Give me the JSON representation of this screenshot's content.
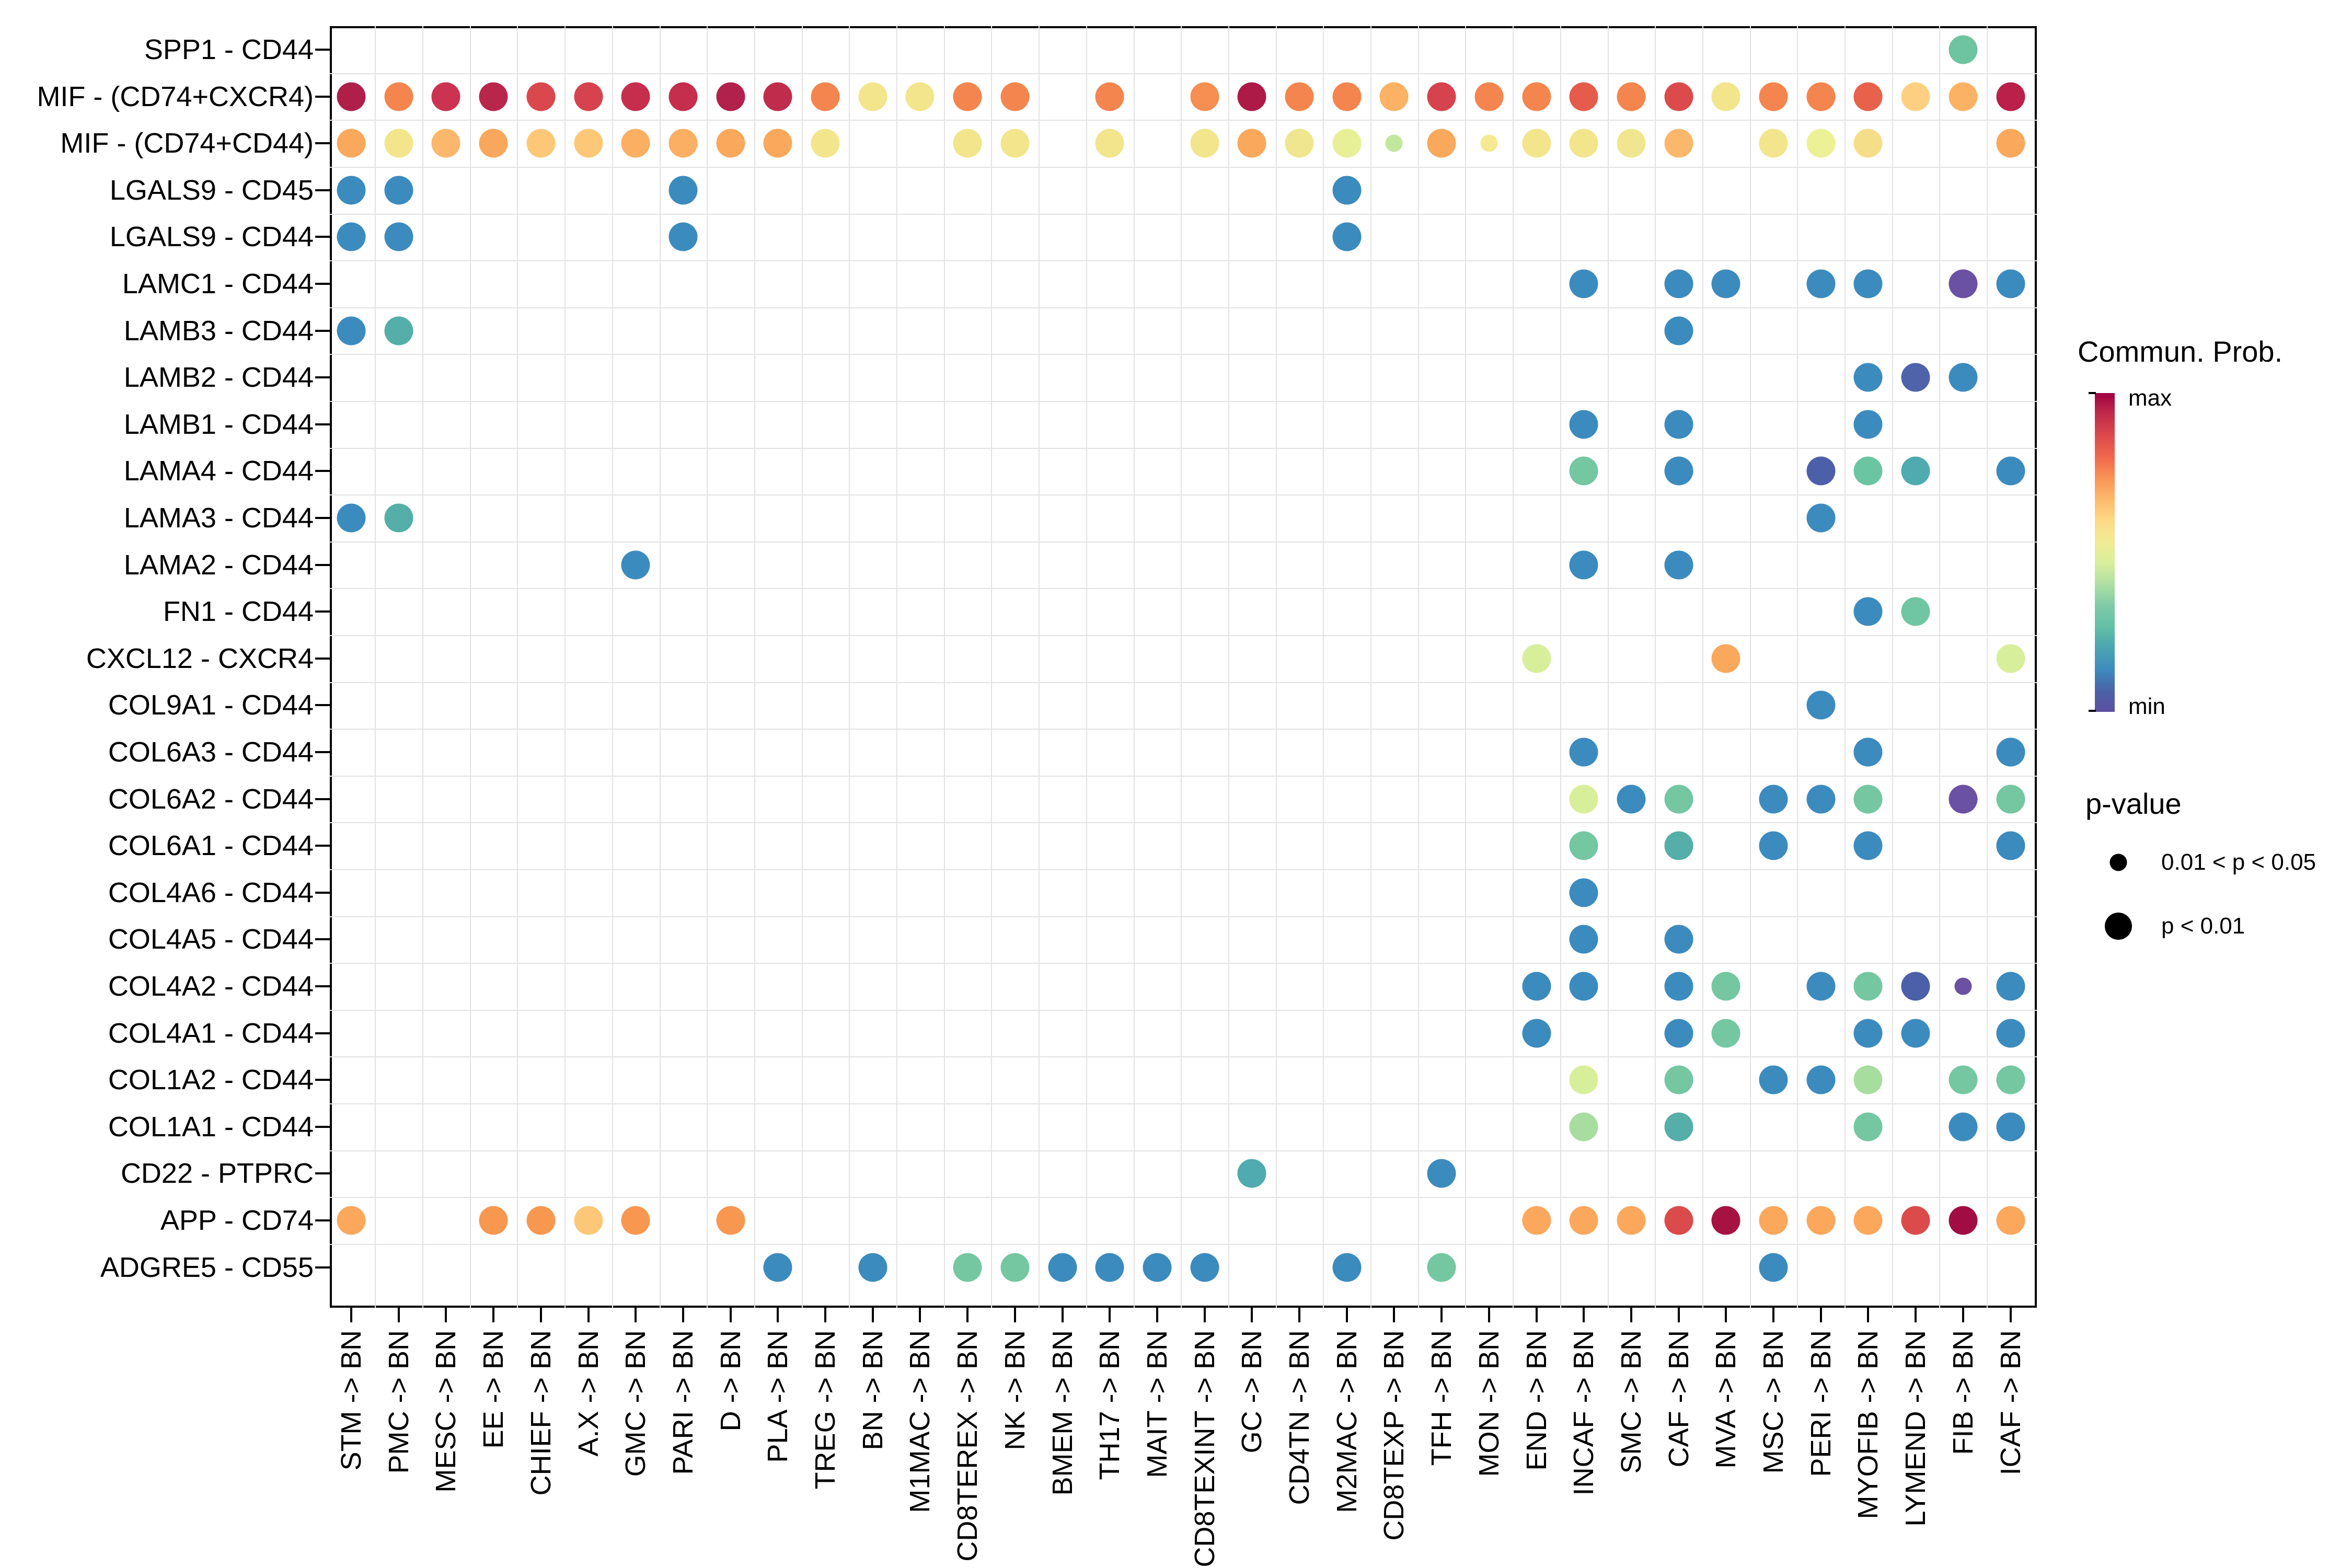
{
  "legend": {
    "color_title": "Commun. Prob.",
    "color_max_label": "max",
    "color_min_label": "min",
    "colorbar_gradient": [
      "#9E0142",
      "#C22B4B",
      "#DC494C",
      "#F0674B",
      "#F99355",
      "#FDB96C",
      "#FDD985",
      "#F2EB94",
      "#D8EF9B",
      "#AEDEA3",
      "#7FCBA6",
      "#62BFA6",
      "#4BA4B2",
      "#3C8BBE",
      "#4A63A9",
      "#5E4FA2"
    ],
    "pvalue_title": "p-value",
    "pvalue_items": [
      {
        "label": "0.01 < p < 0.05",
        "size": 33
      },
      {
        "label": "p < 0.01",
        "size": 52
      }
    ]
  },
  "chart_data": {
    "type": "scatter",
    "title": "",
    "xlabel": "",
    "ylabel": "",
    "grid": true,
    "legend_position": "right",
    "color_scale": {
      "palette": "Spectral reversed",
      "max_color": "#9E0142",
      "min_color": "#5E4FA2",
      "max_label": "max",
      "min_label": "min"
    },
    "size_scale": {
      "large": "p < 0.01",
      "small": "0.01 < p < 0.05"
    },
    "x_categories": [
      "STM -> BN",
      "PMC -> BN",
      "MESC -> BN",
      "EE -> BN",
      "CHIEF -> BN",
      "A.X -> BN",
      "GMC -> BN",
      "PARI -> BN",
      "D -> BN",
      "PLA -> BN",
      "TREG -> BN",
      "BN -> BN",
      "M1MAC -> BN",
      "CD8TEREX -> BN",
      "NK -> BN",
      "BMEM -> BN",
      "TH17 -> BN",
      "MAIT -> BN",
      "CD8TEXINT -> BN",
      "GC -> BN",
      "CD4TN -> BN",
      "M2MAC -> BN",
      "CD8TEXP -> BN",
      "TFH -> BN",
      "MON -> BN",
      "END -> BN",
      "INCAF -> BN",
      "SMC -> BN",
      "CAF -> BN",
      "MVA -> BN",
      "MSC -> BN",
      "PERI -> BN",
      "MYOFIB -> BN",
      "LYMEND -> BN",
      "FIB -> BN",
      "ICAF -> BN"
    ],
    "y_categories": [
      "SPP1 - CD44",
      "MIF - (CD74+CXCR4)",
      "MIF - (CD74+CD44)",
      "LGALS9 - CD45",
      "LGALS9 - CD44",
      "LAMC1 - CD44",
      "LAMB3 - CD44",
      "LAMB2 - CD44",
      "LAMB1 - CD44",
      "LAMA4 - CD44",
      "LAMA3 - CD44",
      "LAMA2 - CD44",
      "FN1 - CD44",
      "CXCL12 - CXCR4",
      "COL9A1 - CD44",
      "COL6A3 - CD44",
      "COL6A2 - CD44",
      "COL6A1 - CD44",
      "COL4A6 - CD44",
      "COL4A5 - CD44",
      "COL4A2 - CD44",
      "COL4A1 - CD44",
      "COL1A2 - CD44",
      "COL1A1 - CD44",
      "CD22 - PTPRC",
      "APP - CD74",
      "ADGRE5 - CD55"
    ],
    "points": [
      [
        0,
        34,
        "#6EC4A0",
        "l"
      ],
      [
        1,
        0,
        "#B01F4A",
        "l"
      ],
      [
        1,
        1,
        "#F5854E",
        "l"
      ],
      [
        1,
        2,
        "#CC3350",
        "l"
      ],
      [
        1,
        3,
        "#B8264C",
        "l"
      ],
      [
        1,
        4,
        "#DA474D",
        "l"
      ],
      [
        1,
        5,
        "#D6434E",
        "l"
      ],
      [
        1,
        6,
        "#C52E4D",
        "l"
      ],
      [
        1,
        7,
        "#C52E4D",
        "l"
      ],
      [
        1,
        8,
        "#B2214B",
        "l"
      ],
      [
        1,
        9,
        "#C02C4B",
        "l"
      ],
      [
        1,
        10,
        "#F5854E",
        "l"
      ],
      [
        1,
        11,
        "#F2E58C",
        "l"
      ],
      [
        1,
        12,
        "#F2E58C",
        "l"
      ],
      [
        1,
        13,
        "#F5854E",
        "l"
      ],
      [
        1,
        14,
        "#F5854E",
        "l"
      ],
      [
        1,
        16,
        "#F5854E",
        "l"
      ],
      [
        1,
        18,
        "#F78E52",
        "l"
      ],
      [
        1,
        19,
        "#AD1A48",
        "l"
      ],
      [
        1,
        20,
        "#F5854E",
        "l"
      ],
      [
        1,
        21,
        "#F5854E",
        "l"
      ],
      [
        1,
        22,
        "#FBB264",
        "l"
      ],
      [
        1,
        23,
        "#D6434E",
        "l"
      ],
      [
        1,
        24,
        "#F5854E",
        "l"
      ],
      [
        1,
        25,
        "#F5854E",
        "l"
      ],
      [
        1,
        26,
        "#E55B4C",
        "l"
      ],
      [
        1,
        27,
        "#F5854E",
        "l"
      ],
      [
        1,
        28,
        "#DC4B4C",
        "l"
      ],
      [
        1,
        29,
        "#F2E58C",
        "l"
      ],
      [
        1,
        30,
        "#F5854E",
        "l"
      ],
      [
        1,
        31,
        "#F5854E",
        "l"
      ],
      [
        1,
        32,
        "#E8614B",
        "l"
      ],
      [
        1,
        33,
        "#FDD081",
        "l"
      ],
      [
        1,
        34,
        "#FBB264",
        "l"
      ],
      [
        1,
        35,
        "#BA2049",
        "l"
      ],
      [
        2,
        0,
        "#F9A85C",
        "l"
      ],
      [
        2,
        1,
        "#F2E58C",
        "l"
      ],
      [
        2,
        2,
        "#FBB76B",
        "l"
      ],
      [
        2,
        3,
        "#F9A75C",
        "l"
      ],
      [
        2,
        4,
        "#FCC878",
        "l"
      ],
      [
        2,
        5,
        "#FCC878",
        "l"
      ],
      [
        2,
        6,
        "#FAAF63",
        "l"
      ],
      [
        2,
        7,
        "#FAAF63",
        "l"
      ],
      [
        2,
        8,
        "#F9A85C",
        "l"
      ],
      [
        2,
        9,
        "#F9A85C",
        "l"
      ],
      [
        2,
        10,
        "#F2E58C",
        "l"
      ],
      [
        2,
        13,
        "#F2E58C",
        "l"
      ],
      [
        2,
        14,
        "#F2E58C",
        "l"
      ],
      [
        2,
        16,
        "#F2E58C",
        "l"
      ],
      [
        2,
        18,
        "#F2E58C",
        "l"
      ],
      [
        2,
        19,
        "#F9A85C",
        "l"
      ],
      [
        2,
        20,
        "#F0E68F",
        "l"
      ],
      [
        2,
        21,
        "#E7F096",
        "l"
      ],
      [
        2,
        22,
        "#C2E89E",
        "s"
      ],
      [
        2,
        23,
        "#F9A85C",
        "l"
      ],
      [
        2,
        24,
        "#F5EA90",
        "s"
      ],
      [
        2,
        25,
        "#F2E58C",
        "l"
      ],
      [
        2,
        26,
        "#F2E58C",
        "l"
      ],
      [
        2,
        27,
        "#F0E68F",
        "l"
      ],
      [
        2,
        28,
        "#FBB76B",
        "l"
      ],
      [
        2,
        30,
        "#F2E58C",
        "l"
      ],
      [
        2,
        31,
        "#EDF195",
        "l"
      ],
      [
        2,
        32,
        "#F6DE89",
        "l"
      ],
      [
        2,
        35,
        "#F9A85C",
        "l"
      ],
      [
        3,
        0,
        "#3C8BBE",
        "l"
      ],
      [
        3,
        1,
        "#3C8BBE",
        "l"
      ],
      [
        3,
        7,
        "#3C8BBE",
        "l"
      ],
      [
        3,
        21,
        "#3C8BBE",
        "l"
      ],
      [
        4,
        0,
        "#3C8BBE",
        "l"
      ],
      [
        4,
        1,
        "#3C8BBE",
        "l"
      ],
      [
        4,
        7,
        "#3C8BBE",
        "l"
      ],
      [
        4,
        21,
        "#3C8BBE",
        "l"
      ],
      [
        5,
        26,
        "#3C8BBE",
        "l"
      ],
      [
        5,
        28,
        "#3C8BBE",
        "l"
      ],
      [
        5,
        29,
        "#3C8BBE",
        "l"
      ],
      [
        5,
        31,
        "#3C8BBE",
        "l"
      ],
      [
        5,
        32,
        "#3C8BBE",
        "l"
      ],
      [
        5,
        34,
        "#6A51A3",
        "l"
      ],
      [
        5,
        35,
        "#3C8BBE",
        "l"
      ],
      [
        6,
        0,
        "#3C8BBE",
        "l"
      ],
      [
        6,
        1,
        "#55AEA8",
        "l"
      ],
      [
        6,
        28,
        "#3C8BBE",
        "l"
      ],
      [
        7,
        32,
        "#3C8BBE",
        "l"
      ],
      [
        7,
        33,
        "#4F63AB",
        "l"
      ],
      [
        7,
        34,
        "#3C8BBE",
        "l"
      ],
      [
        8,
        26,
        "#3C8BBE",
        "l"
      ],
      [
        8,
        28,
        "#3C8BBE",
        "l"
      ],
      [
        8,
        32,
        "#3C8BBE",
        "l"
      ],
      [
        9,
        26,
        "#74C7A1",
        "l"
      ],
      [
        9,
        28,
        "#3C8BBE",
        "l"
      ],
      [
        9,
        31,
        "#4C5FA9",
        "l"
      ],
      [
        9,
        32,
        "#6BC5A3",
        "l"
      ],
      [
        9,
        33,
        "#4FABAF",
        "l"
      ],
      [
        9,
        35,
        "#3C8BBE",
        "l"
      ],
      [
        10,
        0,
        "#3C8BBE",
        "l"
      ],
      [
        10,
        1,
        "#55AEA8",
        "l"
      ],
      [
        10,
        31,
        "#3C8BBE",
        "l"
      ],
      [
        11,
        6,
        "#3C8BBE",
        "l"
      ],
      [
        11,
        26,
        "#3C8BBE",
        "l"
      ],
      [
        11,
        28,
        "#3C8BBE",
        "l"
      ],
      [
        12,
        32,
        "#3C8BBE",
        "l"
      ],
      [
        12,
        33,
        "#70C6A2",
        "l"
      ],
      [
        13,
        25,
        "#D7EF9B",
        "l"
      ],
      [
        13,
        29,
        "#F9A85C",
        "l"
      ],
      [
        13,
        35,
        "#D7EF9B",
        "l"
      ],
      [
        14,
        31,
        "#3C8BBE",
        "l"
      ],
      [
        15,
        26,
        "#3C8BBE",
        "l"
      ],
      [
        15,
        32,
        "#3C8BBE",
        "l"
      ],
      [
        15,
        35,
        "#3C8BBE",
        "l"
      ],
      [
        16,
        26,
        "#D7EF9B",
        "l"
      ],
      [
        16,
        27,
        "#3C8BBE",
        "l"
      ],
      [
        16,
        28,
        "#74C7A1",
        "l"
      ],
      [
        16,
        30,
        "#3C8BBE",
        "l"
      ],
      [
        16,
        31,
        "#3C8BBE",
        "l"
      ],
      [
        16,
        32,
        "#74C7A1",
        "l"
      ],
      [
        16,
        34,
        "#6A51A3",
        "l"
      ],
      [
        16,
        35,
        "#74C7A1",
        "l"
      ],
      [
        17,
        26,
        "#74C7A1",
        "l"
      ],
      [
        17,
        28,
        "#55AEA8",
        "l"
      ],
      [
        17,
        30,
        "#3C8BBE",
        "l"
      ],
      [
        17,
        32,
        "#3C8BBE",
        "l"
      ],
      [
        17,
        35,
        "#3C8BBE",
        "l"
      ],
      [
        18,
        26,
        "#3C8BBE",
        "l"
      ],
      [
        19,
        26,
        "#3C8BBE",
        "l"
      ],
      [
        19,
        28,
        "#3C8BBE",
        "l"
      ],
      [
        20,
        25,
        "#3C8BBE",
        "l"
      ],
      [
        20,
        26,
        "#3C8BBE",
        "l"
      ],
      [
        20,
        28,
        "#3C8BBE",
        "l"
      ],
      [
        20,
        29,
        "#74C7A1",
        "l"
      ],
      [
        20,
        31,
        "#3C8BBE",
        "l"
      ],
      [
        20,
        32,
        "#74C7A1",
        "l"
      ],
      [
        20,
        33,
        "#4C5FA9",
        "l"
      ],
      [
        20,
        34,
        "#6A51A3",
        "s"
      ],
      [
        20,
        35,
        "#3C8BBE",
        "l"
      ],
      [
        21,
        25,
        "#3C8BBE",
        "l"
      ],
      [
        21,
        28,
        "#3C8BBE",
        "l"
      ],
      [
        21,
        29,
        "#74C7A1",
        "l"
      ],
      [
        21,
        32,
        "#3C8BBE",
        "l"
      ],
      [
        21,
        33,
        "#3C8BBE",
        "l"
      ],
      [
        21,
        35,
        "#3C8BBE",
        "l"
      ],
      [
        22,
        26,
        "#D7EF9B",
        "l"
      ],
      [
        22,
        28,
        "#74C7A1",
        "l"
      ],
      [
        22,
        30,
        "#3C8BBE",
        "l"
      ],
      [
        22,
        31,
        "#3C8BBE",
        "l"
      ],
      [
        22,
        32,
        "#A8DDA0",
        "l"
      ],
      [
        22,
        34,
        "#74C7A1",
        "l"
      ],
      [
        22,
        35,
        "#74C7A1",
        "l"
      ],
      [
        23,
        26,
        "#A8DDA0",
        "l"
      ],
      [
        23,
        28,
        "#55AEA8",
        "l"
      ],
      [
        23,
        32,
        "#74C7A1",
        "l"
      ],
      [
        23,
        34,
        "#3C8BBE",
        "l"
      ],
      [
        23,
        35,
        "#3C8BBE",
        "l"
      ],
      [
        24,
        19,
        "#4FABAF",
        "l"
      ],
      [
        24,
        23,
        "#3C8BBE",
        "l"
      ],
      [
        25,
        0,
        "#FBA85D",
        "l"
      ],
      [
        25,
        3,
        "#F89750",
        "l"
      ],
      [
        25,
        4,
        "#F89750",
        "l"
      ],
      [
        25,
        5,
        "#FCC878",
        "l"
      ],
      [
        25,
        6,
        "#F89750",
        "l"
      ],
      [
        25,
        8,
        "#F89750",
        "l"
      ],
      [
        25,
        25,
        "#FBA85D",
        "l"
      ],
      [
        25,
        26,
        "#FBA85D",
        "l"
      ],
      [
        25,
        27,
        "#FBA85D",
        "l"
      ],
      [
        25,
        28,
        "#DC4B4C",
        "l"
      ],
      [
        25,
        29,
        "#A61343",
        "l"
      ],
      [
        25,
        30,
        "#FBA85D",
        "l"
      ],
      [
        25,
        31,
        "#FBA85D",
        "l"
      ],
      [
        25,
        32,
        "#FBA85D",
        "l"
      ],
      [
        25,
        33,
        "#DC4B4C",
        "l"
      ],
      [
        25,
        34,
        "#A10D42",
        "l"
      ],
      [
        25,
        35,
        "#FBA85D",
        "l"
      ],
      [
        26,
        9,
        "#3C8BBE",
        "l"
      ],
      [
        26,
        11,
        "#3C8BBE",
        "l"
      ],
      [
        26,
        13,
        "#74C7A1",
        "l"
      ],
      [
        26,
        14,
        "#74C7A1",
        "l"
      ],
      [
        26,
        15,
        "#3C8BBE",
        "l"
      ],
      [
        26,
        16,
        "#3C8BBE",
        "l"
      ],
      [
        26,
        17,
        "#3C8BBE",
        "l"
      ],
      [
        26,
        18,
        "#3C8BBE",
        "l"
      ],
      [
        26,
        21,
        "#3C8BBE",
        "l"
      ],
      [
        26,
        23,
        "#74C7A1",
        "l"
      ],
      [
        26,
        30,
        "#3C8BBE",
        "l"
      ]
    ]
  }
}
